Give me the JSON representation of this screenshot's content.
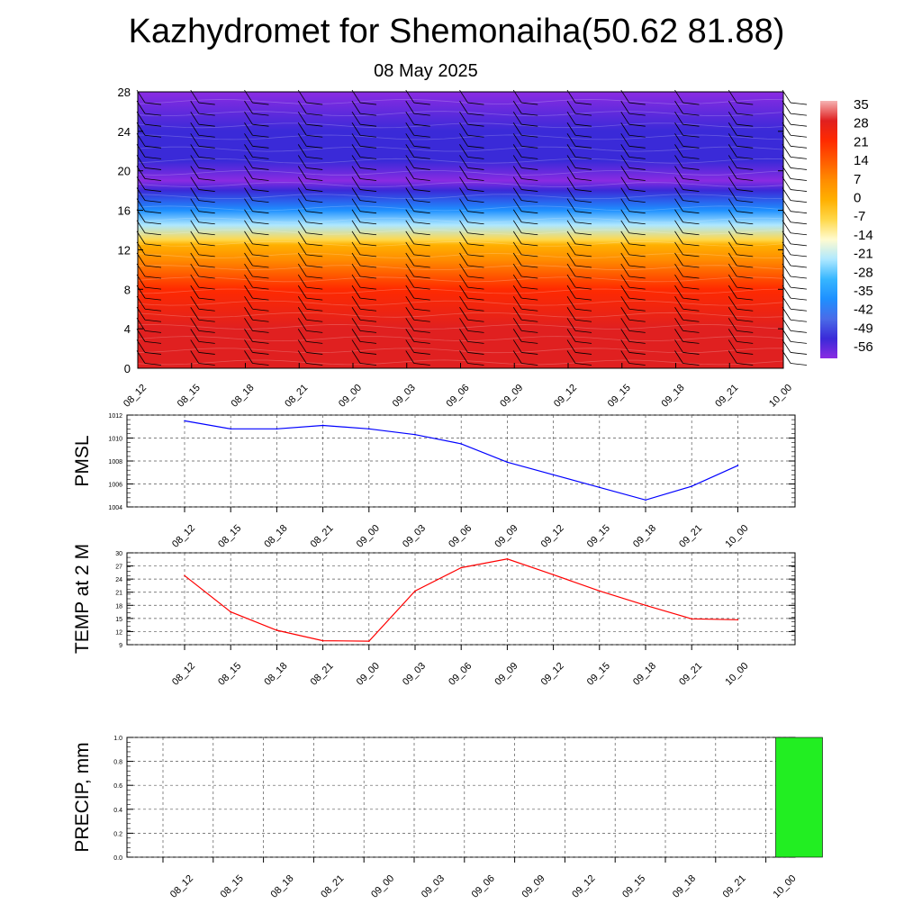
{
  "title": "Kazhydromet for Shemonaiha(50.62 81.88)",
  "subtitle": "08 May 2025",
  "time_labels": [
    "08_12",
    "08_15",
    "08_18",
    "08_21",
    "09_00",
    "09_03",
    "09_06",
    "09_09",
    "09_12",
    "09_15",
    "09_18",
    "09_21",
    "10_00"
  ],
  "chart_data": [
    {
      "type": "heatmap",
      "name": "cross-section",
      "x": [
        "08_12",
        "08_15",
        "08_18",
        "08_21",
        "09_00",
        "09_03",
        "09_06",
        "09_09",
        "09_12",
        "09_15",
        "09_18",
        "09_21",
        "10_00"
      ],
      "ylim": [
        0,
        28
      ],
      "yticks": [
        0,
        4,
        8,
        12,
        16,
        20,
        24,
        28
      ],
      "colorbar": {
        "labels": [
          "35",
          "28",
          "21",
          "14",
          "7",
          "0",
          "-7",
          "-14",
          "-21",
          "-28",
          "-35",
          "-42",
          "-49",
          "-56"
        ],
        "colors": [
          "#f5b3b3",
          "#e02020",
          "#ff2a00",
          "#ff5a00",
          "#ff8c00",
          "#ffb000",
          "#ffd84a",
          "#fffbd0",
          "#aee8ff",
          "#37b6ff",
          "#1e90ff",
          "#4a6be8",
          "#3a2ad8",
          "#8a2be2"
        ]
      },
      "profile": [
        {
          "level": 0,
          "value": 30
        },
        {
          "level": 4,
          "value": 27
        },
        {
          "level": 8,
          "value": 18
        },
        {
          "level": 11,
          "value": 10
        },
        {
          "level": 12.5,
          "value": -2
        },
        {
          "level": 13,
          "value": -10
        },
        {
          "level": 14.5,
          "value": -22
        },
        {
          "level": 16,
          "value": -34
        },
        {
          "level": 18,
          "value": -48
        },
        {
          "level": 19,
          "value": -55
        },
        {
          "level": 21,
          "value": -50
        },
        {
          "level": 24,
          "value": -52
        },
        {
          "level": 28,
          "value": -56
        }
      ],
      "barbs": true
    },
    {
      "type": "line",
      "ylabel": "PMSL",
      "x": [
        "08_12",
        "08_15",
        "08_18",
        "08_21",
        "09_00",
        "09_03",
        "09_06",
        "09_09",
        "09_12",
        "09_15",
        "09_18",
        "09_21",
        "10_00"
      ],
      "series": [
        {
          "values": [
            1011.5,
            1010.8,
            1010.8,
            1011.1,
            1010.8,
            1010.3,
            1009.5,
            1007.9,
            1006.8,
            1005.7,
            1004.6,
            1005.8,
            1007.6
          ]
        }
      ],
      "ylim": [
        1004,
        1012
      ],
      "yticks": [
        1004,
        1006,
        1008,
        1010,
        1012
      ],
      "color": "#0000ff",
      "grid": true
    },
    {
      "type": "line",
      "ylabel": "TEMP at 2 M",
      "x": [
        "08_12",
        "08_15",
        "08_18",
        "08_21",
        "09_00",
        "09_03",
        "09_06",
        "09_09",
        "09_12",
        "09_15",
        "09_18",
        "09_21",
        "10_00"
      ],
      "series": [
        {
          "values": [
            24.8,
            16.5,
            12.3,
            9.9,
            9.8,
            21.3,
            26.6,
            28.6,
            25.0,
            21.3,
            18.0,
            14.9,
            14.7
          ]
        }
      ],
      "ylim": [
        9,
        30
      ],
      "yticks": [
        9,
        12,
        15,
        18,
        21,
        24,
        27,
        30
      ],
      "color": "#ff0000",
      "grid": true
    },
    {
      "type": "bar",
      "ylabel": "PRECIP, mm",
      "categories": [
        "08_12",
        "08_15",
        "08_18",
        "08_21",
        "09_00",
        "09_03",
        "09_06",
        "09_09",
        "09_12",
        "09_15",
        "09_18",
        "09_21",
        "10_00"
      ],
      "values": [
        0,
        0,
        0,
        0,
        0,
        0,
        0,
        0,
        0,
        0,
        0,
        0,
        1.0
      ],
      "ylim": [
        0,
        1.0
      ],
      "yticks": [
        "0.0",
        "0.2",
        "0.4",
        "0.6",
        "0.8",
        "1.0"
      ],
      "color": "#22ee22",
      "grid": true
    }
  ]
}
